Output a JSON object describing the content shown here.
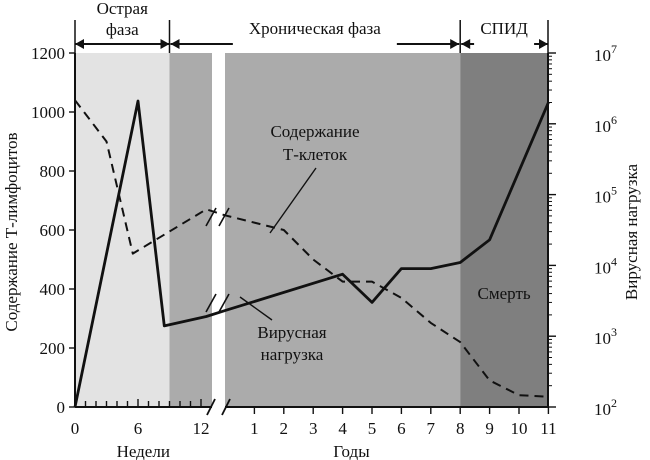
{
  "chart_data": {
    "type": "line",
    "phases": [
      {
        "label": "Острая\nфаза",
        "label_lines": [
          "Острая",
          "фаза"
        ],
        "from_week": 0,
        "to_week": 9,
        "shade": "#e3e3e3"
      },
      {
        "label": "Хроническая фаза",
        "label_lines": [
          "Хроническая фаза"
        ],
        "from_week": 9,
        "to_year": 8,
        "shade": "#ababab"
      },
      {
        "label": "СПИД",
        "label_lines": [
          "СПИД"
        ],
        "from_year": 8,
        "to_year": 11,
        "shade": "#7f7f7f"
      }
    ],
    "x_axis": {
      "weeks": {
        "label": "Недели",
        "ticks": [
          "0",
          "6",
          "12"
        ],
        "range": [
          0,
          13
        ]
      },
      "years": {
        "label": "Годы",
        "ticks": [
          "1",
          "2",
          "3",
          "4",
          "5",
          "6",
          "7",
          "8",
          "9",
          "10",
          "11"
        ],
        "range": [
          0,
          11
        ]
      }
    },
    "y_left": {
      "label": "Содержание Т-лимфоцитов",
      "ticks": [
        "0",
        "200",
        "400",
        "600",
        "800",
        "1000",
        "1200"
      ],
      "ylim": [
        0,
        1200
      ]
    },
    "y_right": {
      "label": "Вирусная нагрузка",
      "scale": "log",
      "ticks": [
        {
          "base": "10",
          "exp": "2"
        },
        {
          "base": "10",
          "exp": "3"
        },
        {
          "base": "10",
          "exp": "4"
        },
        {
          "base": "10",
          "exp": "5"
        },
        {
          "base": "10",
          "exp": "6"
        },
        {
          "base": "10",
          "exp": "7"
        }
      ],
      "ylim": [
        100,
        10000000
      ]
    },
    "series": [
      {
        "name": "Содержание Т-клеток",
        "label_lines": [
          "Содержание",
          "Т-клеток"
        ],
        "style": "dashed",
        "axis": "left",
        "weeks": [
          {
            "x": 0,
            "y": 1040
          },
          {
            "x": 3,
            "y": 900
          },
          {
            "x": 5.5,
            "y": 520
          },
          {
            "x": 12.5,
            "y": 670
          }
        ],
        "years": [
          {
            "x": 0,
            "y": 650
          },
          {
            "x": 2,
            "y": 600
          },
          {
            "x": 3,
            "y": 500
          },
          {
            "x": 4,
            "y": 425
          },
          {
            "x": 5,
            "y": 425
          },
          {
            "x": 6,
            "y": 370
          },
          {
            "x": 7,
            "y": 285
          },
          {
            "x": 8,
            "y": 220
          },
          {
            "x": 9,
            "y": 90
          },
          {
            "x": 10,
            "y": 40
          },
          {
            "x": 11,
            "y": 35
          }
        ]
      },
      {
        "name": "Вирусная нагрузка",
        "label_lines": [
          "Вирусная",
          "нагрузка"
        ],
        "style": "solid",
        "axis": "right",
        "weeks": [
          {
            "x": 0,
            "y": 100
          },
          {
            "x": 6,
            "y": 2100000
          },
          {
            "x": 8.5,
            "y": 1400
          },
          {
            "x": 12.5,
            "y": 1900
          }
        ],
        "years": [
          {
            "x": 0,
            "y": 2300
          },
          {
            "x": 4,
            "y": 7500
          },
          {
            "x": 5,
            "y": 3000
          },
          {
            "x": 6,
            "y": 9000
          },
          {
            "x": 7,
            "y": 9000
          },
          {
            "x": 8,
            "y": 11000
          },
          {
            "x": 9,
            "y": 23000
          },
          {
            "x": 11,
            "y": 2000000
          }
        ]
      }
    ],
    "annotations": [
      {
        "text": "Смерть"
      }
    ]
  }
}
